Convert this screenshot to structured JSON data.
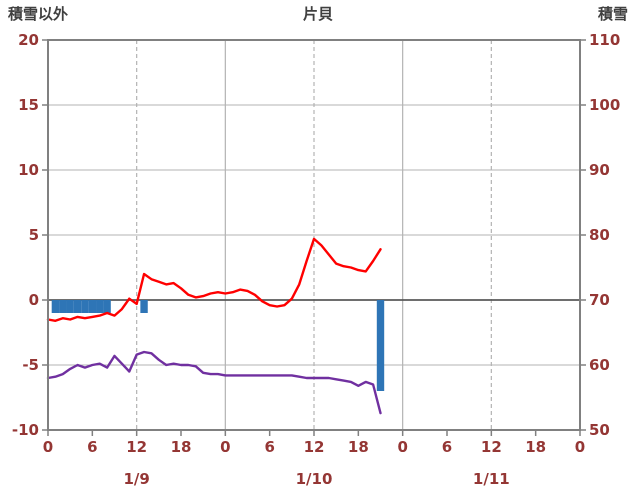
{
  "chart_data": {
    "type": "line+bar",
    "title": "片貝",
    "left_axis": {
      "label": "積雪以外",
      "min": -10,
      "max": 20,
      "ticks": [
        20,
        15,
        10,
        5,
        0,
        -5,
        -10
      ]
    },
    "right_axis": {
      "label": "積雪",
      "min": 50,
      "max": 110,
      "ticks": [
        110,
        100,
        90,
        80,
        70,
        60,
        50
      ]
    },
    "x_axis": {
      "total_hours": 72,
      "tick_interval_hours": 6,
      "hour_tick_labels": [
        "0",
        "6",
        "12",
        "18",
        "0",
        "6",
        "12",
        "18",
        "0",
        "6",
        "12",
        "18",
        "0"
      ],
      "day_labels": [
        "1/9",
        "1/10",
        "1/11"
      ],
      "day_label_center_hours": [
        12,
        36,
        60
      ],
      "solid_grid_hours": [
        24,
        48
      ],
      "dashed_grid_hours": [
        12,
        36,
        60
      ]
    },
    "horizontal_grid_left_values": [
      15,
      10,
      5,
      -5
    ],
    "zero_line_left_value": 0,
    "series": [
      {
        "name": "blue-bars",
        "type": "bar",
        "axis": "left",
        "color": "#2e75b6",
        "hours": [
          1,
          2,
          3,
          4,
          5,
          6,
          7,
          8,
          13,
          45
        ],
        "values": [
          -1,
          -1,
          -1,
          -1,
          -1,
          -1,
          -1,
          -1,
          -1,
          -7
        ]
      },
      {
        "name": "purple-line",
        "type": "line",
        "axis": "right",
        "color": "#7030a0",
        "start_hour": 0,
        "step_hours": 1,
        "values": [
          58.0,
          58.2,
          58.6,
          59.4,
          60.0,
          59.6,
          60.0,
          60.2,
          59.6,
          61.4,
          60.2,
          59.0,
          61.6,
          62.0,
          61.8,
          60.8,
          60.0,
          60.2,
          60.0,
          60.0,
          59.8,
          58.8,
          58.6,
          58.6,
          58.4,
          58.4,
          58.4,
          58.4,
          58.4,
          58.4,
          58.4,
          58.4,
          58.4,
          58.4,
          58.2,
          58.0,
          58.0,
          58.0,
          58.0,
          57.8,
          57.6,
          57.4,
          56.8,
          57.4,
          57.0,
          52.6
        ]
      },
      {
        "name": "red-line",
        "type": "line",
        "axis": "left",
        "color": "#ff0000",
        "start_hour": 0,
        "step_hours": 1,
        "values": [
          -1.5,
          -1.6,
          -1.4,
          -1.5,
          -1.3,
          -1.4,
          -1.3,
          -1.2,
          -1.0,
          -1.2,
          -0.7,
          0.1,
          -0.3,
          2.0,
          1.6,
          1.4,
          1.2,
          1.3,
          0.9,
          0.4,
          0.2,
          0.3,
          0.5,
          0.6,
          0.5,
          0.6,
          0.8,
          0.7,
          0.4,
          -0.1,
          -0.4,
          -0.5,
          -0.4,
          0.1,
          1.2,
          3.0,
          4.7,
          4.2,
          3.5,
          2.8,
          2.6,
          2.5,
          2.3,
          2.2,
          3.0,
          3.9
        ]
      }
    ],
    "colors": {
      "axis_tick_text": "#943634",
      "header_text": "#404040",
      "grid": "#b3b3b3",
      "zero_line": "#595959",
      "frame": "#808080"
    }
  }
}
